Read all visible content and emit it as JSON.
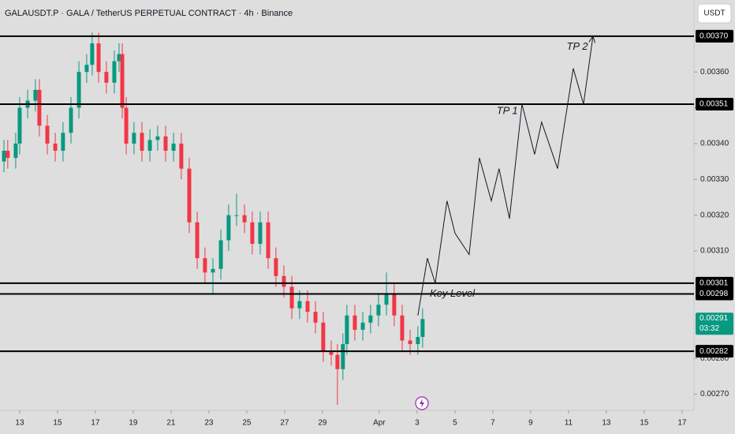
{
  "chart_data": {
    "type": "candlestick",
    "title": "GALAUSDT.P · GALA / TetherUS PERPETUAL CONTRACT · 4h · Binance",
    "currency": "USDT",
    "up_color": "#089981",
    "down_color": "#f23645",
    "xlim": [
      -1.04,
      35.63
    ],
    "ylim": [
      0.002655,
      0.003801
    ],
    "xticks": [
      {
        "value": 0,
        "label": "13"
      },
      {
        "value": 2,
        "label": "15"
      },
      {
        "value": 4,
        "label": "17"
      },
      {
        "value": 6,
        "label": "19"
      },
      {
        "value": 8,
        "label": "21"
      },
      {
        "value": 10,
        "label": "23"
      },
      {
        "value": 12,
        "label": "25"
      },
      {
        "value": 14,
        "label": "27"
      },
      {
        "value": 16,
        "label": "29"
      },
      {
        "value": 19,
        "label": "Apr"
      },
      {
        "value": 21,
        "label": "3"
      },
      {
        "value": 23,
        "label": "5"
      },
      {
        "value": 25,
        "label": "7"
      },
      {
        "value": 27,
        "label": "9"
      },
      {
        "value": 29,
        "label": "11"
      },
      {
        "value": 31,
        "label": "13"
      },
      {
        "value": 33,
        "label": "15"
      },
      {
        "value": 35,
        "label": "17"
      }
    ],
    "yticks": [
      {
        "value": 0.0027,
        "label": "0.00270"
      },
      {
        "value": 0.0028,
        "label": "0.00280"
      },
      {
        "value": 0.0031,
        "label": "0.00310"
      },
      {
        "value": 0.0032,
        "label": "0.00320"
      },
      {
        "value": 0.0033,
        "label": "0.00330"
      },
      {
        "value": 0.0034,
        "label": "0.00340"
      },
      {
        "value": 0.0035,
        "label": "0.00350"
      },
      {
        "value": 0.0036,
        "label": "0.00360"
      }
    ],
    "x": [
      -0.83,
      -0.63,
      -0.21,
      0,
      0.42,
      0.83,
      1.04,
      1.46,
      1.88,
      2.29,
      2.71,
      3.13,
      3.54,
      3.83,
      4.17,
      4.58,
      5,
      5.25,
      5.42,
      5.63,
      6.04,
      6.46,
      6.88,
      7.29,
      7.71,
      8.13,
      8.54,
      8.96,
      9.38,
      9.79,
      10.21,
      10.63,
      11.04,
      11.46,
      11.88,
      12.29,
      12.71,
      13.13,
      13.54,
      13.96,
      14.38,
      14.79,
      15.21,
      15.63,
      16.04,
      16.46,
      16.79,
      17.08,
      17.29,
      17.71,
      18.13,
      18.54,
      18.96,
      19.38,
      19.79,
      20.21,
      20.63,
      21.04,
      21.29
    ],
    "open": [
      0.00335,
      0.00338,
      0.00336,
      0.0034,
      0.0035,
      0.00352,
      0.00355,
      0.00345,
      0.0034,
      0.00338,
      0.00343,
      0.0035,
      0.0036,
      0.00362,
      0.00368,
      0.0036,
      0.00357,
      0.00363,
      0.00365,
      0.0035,
      0.0034,
      0.00343,
      0.00338,
      0.00341,
      0.00342,
      0.00338,
      0.0034,
      0.00333,
      0.00318,
      0.00308,
      0.00304,
      0.00305,
      0.00313,
      0.0032,
      0.0032,
      0.00318,
      0.00312,
      0.00318,
      0.00308,
      0.00303,
      0.003,
      0.00294,
      0.00296,
      0.00293,
      0.0029,
      0.00282,
      0.00281,
      0.00277,
      0.00284,
      0.00292,
      0.00288,
      0.0029,
      0.00292,
      0.00295,
      0.00298,
      0.00292,
      0.00285,
      0.00284,
      0.00286
    ],
    "high": [
      0.00341,
      0.00341,
      0.00343,
      0.00353,
      0.00355,
      0.00358,
      0.00358,
      0.00348,
      0.00343,
      0.00346,
      0.00353,
      0.00363,
      0.00365,
      0.00371,
      0.00371,
      0.00363,
      0.00366,
      0.00368,
      0.00368,
      0.00353,
      0.00346,
      0.00346,
      0.00344,
      0.00345,
      0.00345,
      0.00343,
      0.00343,
      0.00336,
      0.00321,
      0.00311,
      0.00308,
      0.00316,
      0.00323,
      0.00326,
      0.00323,
      0.00321,
      0.00321,
      0.00321,
      0.00311,
      0.00306,
      0.00303,
      0.00299,
      0.00299,
      0.00296,
      0.00293,
      0.00285,
      0.00284,
      0.00287,
      0.00295,
      0.00295,
      0.00293,
      0.00295,
      0.00298,
      0.00304,
      0.00301,
      0.00295,
      0.00288,
      0.00289,
      0.00294
    ],
    "low": [
      0.00332,
      0.00333,
      0.00333,
      0.00337,
      0.00347,
      0.00349,
      0.00342,
      0.00337,
      0.00335,
      0.00335,
      0.0034,
      0.00347,
      0.00357,
      0.00359,
      0.00357,
      0.00354,
      0.00354,
      0.0036,
      0.00347,
      0.00337,
      0.00337,
      0.00335,
      0.00335,
      0.00338,
      0.00335,
      0.00335,
      0.0033,
      0.00315,
      0.00305,
      0.00301,
      0.00298,
      0.00302,
      0.0031,
      0.00317,
      0.00315,
      0.00309,
      0.00309,
      0.00305,
      0.003,
      0.00297,
      0.00291,
      0.00291,
      0.0029,
      0.00287,
      0.00279,
      0.00278,
      0.00267,
      0.00274,
      0.00281,
      0.00285,
      0.00285,
      0.00287,
      0.00289,
      0.00292,
      0.00289,
      0.00282,
      0.00281,
      0.00281,
      0.00283
    ],
    "close": [
      0.00338,
      0.00336,
      0.0034,
      0.0035,
      0.00352,
      0.00355,
      0.00345,
      0.0034,
      0.00338,
      0.00343,
      0.0035,
      0.0036,
      0.00362,
      0.00368,
      0.0036,
      0.00357,
      0.00363,
      0.00365,
      0.0035,
      0.0034,
      0.00343,
      0.00338,
      0.00341,
      0.00342,
      0.00338,
      0.0034,
      0.00333,
      0.00318,
      0.00308,
      0.00304,
      0.00305,
      0.00313,
      0.0032,
      0.0032,
      0.00318,
      0.00312,
      0.00318,
      0.00308,
      0.00303,
      0.003,
      0.00294,
      0.00296,
      0.00293,
      0.0029,
      0.00282,
      0.00281,
      0.00277,
      0.00284,
      0.00292,
      0.00288,
      0.0029,
      0.00292,
      0.00295,
      0.00298,
      0.00292,
      0.00285,
      0.00284,
      0.00286,
      0.00291
    ],
    "levels": [
      {
        "value": 0.0037,
        "label": "0.00370"
      },
      {
        "value": 0.00351,
        "label": "0.00351"
      },
      {
        "value": 0.00301,
        "label": "0.00301"
      },
      {
        "value": 0.00298,
        "label": "0.00298"
      },
      {
        "value": 0.00282,
        "label": "0.00282"
      }
    ],
    "current_price": {
      "value": 0.00291,
      "label": "0.00291",
      "countdown": "03:32",
      "color": "#089981"
    },
    "projection": {
      "x": [
        21.04,
        21.54,
        21.96,
        22.58,
        23,
        23.75,
        24.29,
        24.92,
        25.33,
        25.88,
        26.54,
        27.21,
        27.58,
        28.42,
        29.25,
        29.79,
        30.29
      ],
      "y": [
        0.00292,
        0.00308,
        0.00301,
        0.00324,
        0.00315,
        0.00309,
        0.00336,
        0.00324,
        0.00333,
        0.00319,
        0.00351,
        0.00337,
        0.00346,
        0.00333,
        0.00361,
        0.00351,
        0.0037
      ]
    },
    "annotations": [
      {
        "text": "TP 2",
        "x": 28.9,
        "y": 0.00367
      },
      {
        "text": "TP 1",
        "x": 25.2,
        "y": 0.00349
      },
      {
        "text": "Key Level",
        "x": 21.67,
        "y": 0.00298
      }
    ]
  }
}
